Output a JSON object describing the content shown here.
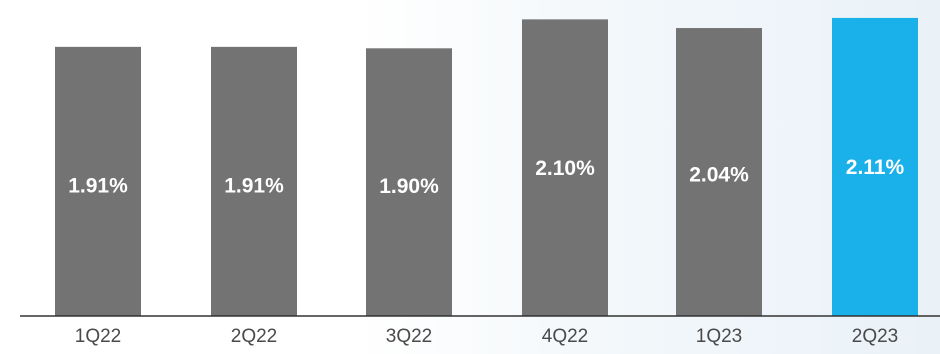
{
  "chart_data": {
    "type": "bar",
    "categories": [
      "1Q22",
      "2Q22",
      "3Q22",
      "4Q22",
      "1Q23",
      "2Q23"
    ],
    "values": [
      1.91,
      1.91,
      1.9,
      2.1,
      2.04,
      2.11
    ],
    "labels": [
      "1.91%",
      "1.91%",
      "1.90%",
      "2.10%",
      "2.04%",
      "2.11%"
    ],
    "unit": "%",
    "highlight_index": 5,
    "title": "",
    "xlabel": "",
    "ylabel": "",
    "grid": false,
    "legend": "none",
    "colors": {
      "bar": "#737373",
      "highlight": "#1ab0ea",
      "label": "#ffffff",
      "tick": "#4a4a4a",
      "highlight_tick": "#1ab0ea",
      "axis": "#333333"
    }
  }
}
